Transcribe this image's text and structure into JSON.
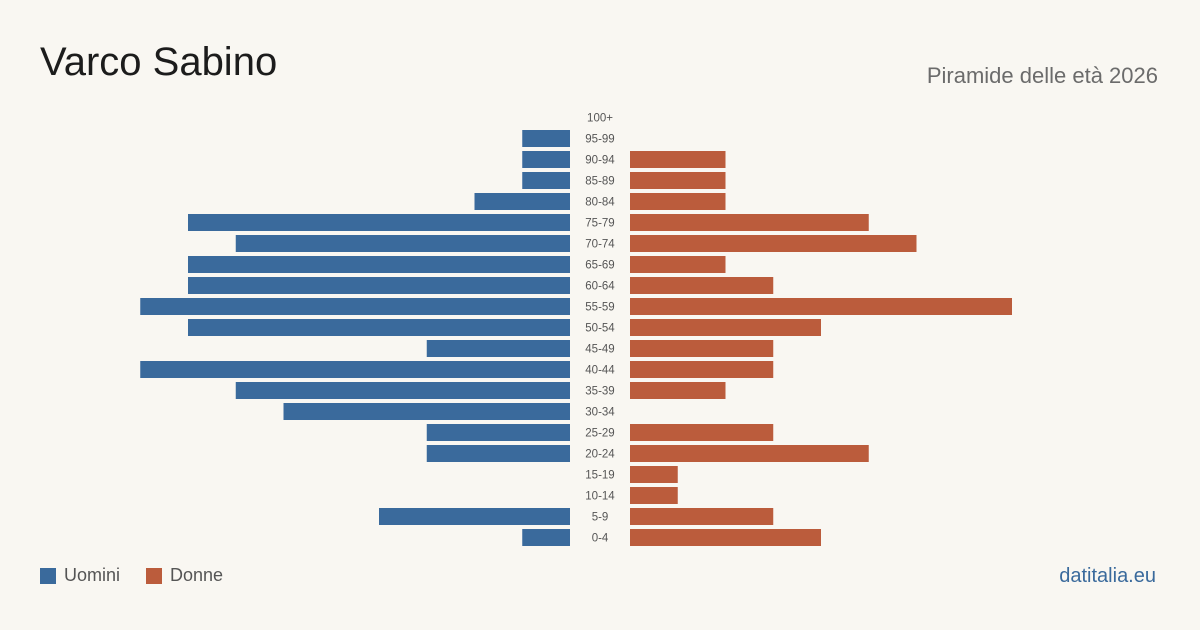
{
  "header": {
    "title": "Varco Sabino",
    "subtitle": "Piramide delle età 2026"
  },
  "legend": {
    "items": [
      {
        "label": "Uomini",
        "color": "#3a6a9c"
      },
      {
        "label": "Donne",
        "color": "#bb5c3c"
      }
    ]
  },
  "footer": {
    "brand": "datitalia.eu"
  },
  "chart_data": {
    "type": "bar",
    "orientation": "horizontal",
    "layout": "population-pyramid",
    "categories": [
      "100+",
      "95-99",
      "90-94",
      "85-89",
      "80-84",
      "75-79",
      "70-74",
      "65-69",
      "60-64",
      "55-59",
      "50-54",
      "45-49",
      "40-44",
      "35-39",
      "30-34",
      "25-29",
      "20-24",
      "15-19",
      "10-14",
      "5-9",
      "0-4"
    ],
    "series": [
      {
        "name": "Uomini",
        "color": "#3a6a9c",
        "side": "left",
        "values": [
          0,
          1,
          1,
          1,
          2,
          8,
          7,
          8,
          8,
          9,
          8,
          3,
          9,
          7,
          6,
          3,
          3,
          0,
          0,
          4,
          1
        ]
      },
      {
        "name": "Donne",
        "color": "#bb5c3c",
        "side": "right",
        "values": [
          0,
          0,
          2,
          2,
          2,
          5,
          6,
          2,
          3,
          8,
          4,
          3,
          3,
          2,
          0,
          3,
          5,
          1,
          1,
          3,
          4
        ]
      }
    ],
    "xlim": [
      0,
      9
    ],
    "grid": false,
    "legend_position": "bottom-left"
  }
}
